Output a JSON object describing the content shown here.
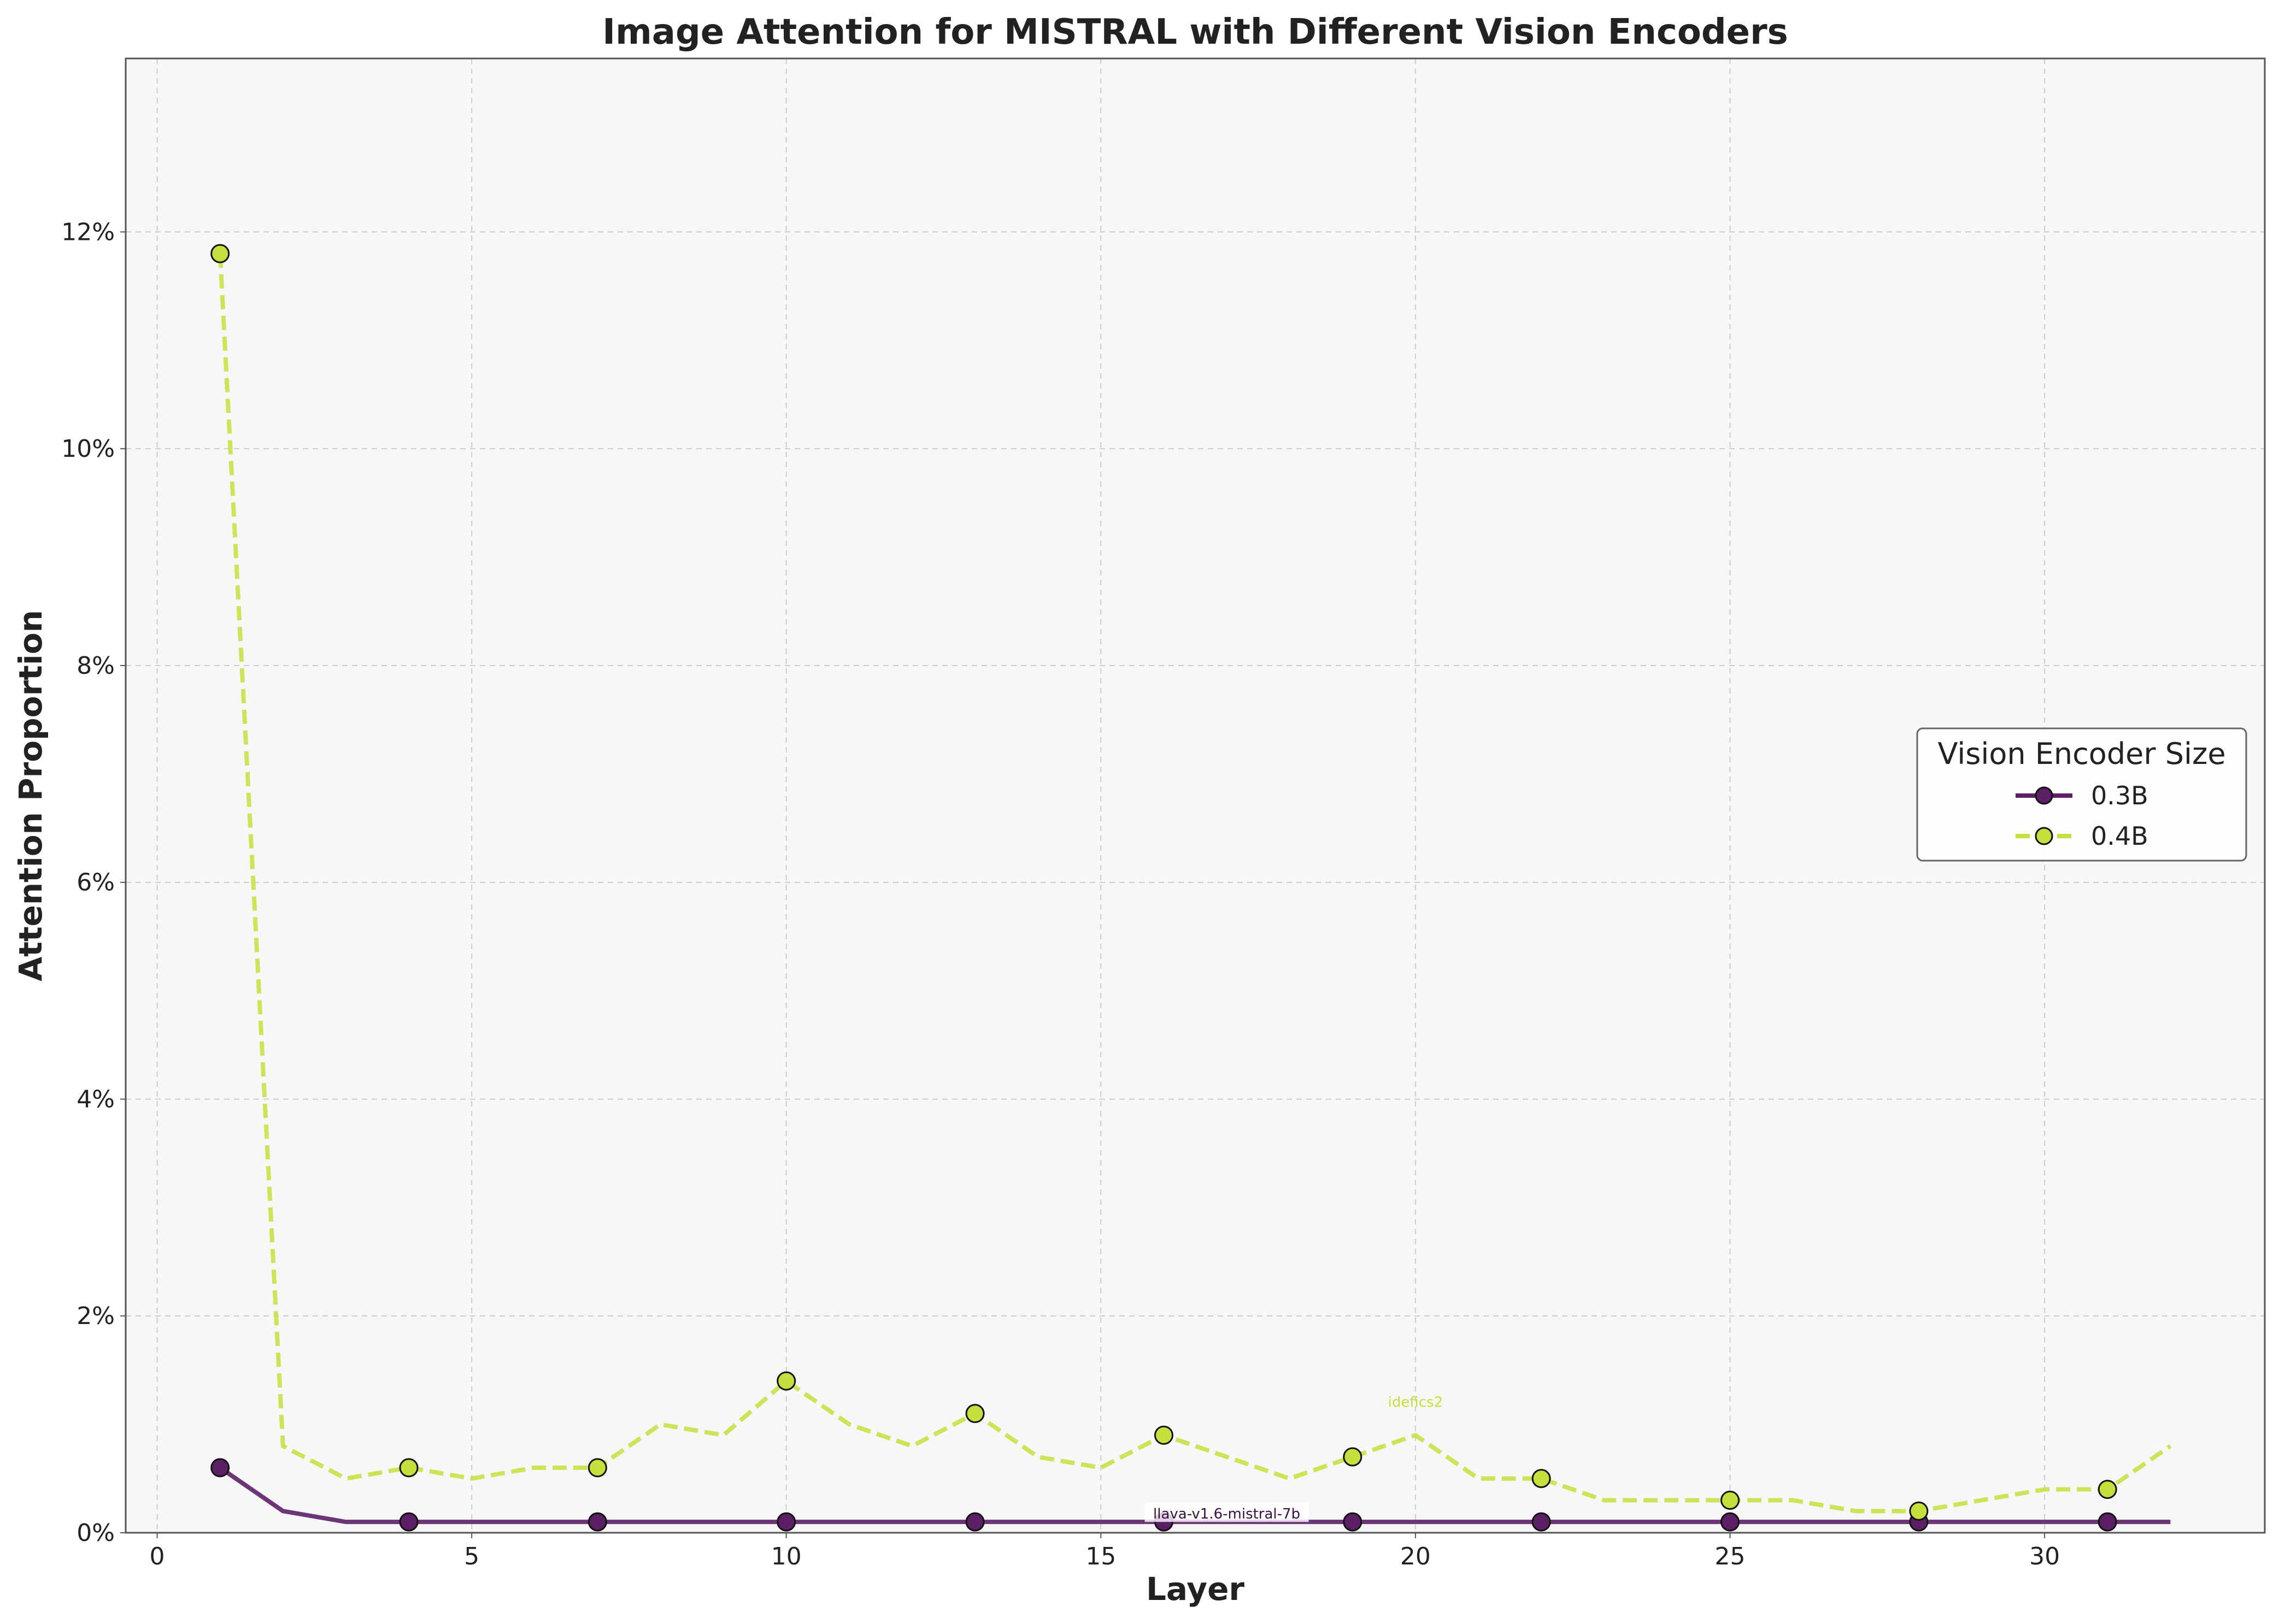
{
  "chart_data": {
    "type": "line",
    "title": "Image Attention for MISTRAL with Different Vision Encoders",
    "xlabel": "Layer",
    "ylabel": "Attention Proportion",
    "xlim": [
      -0.5,
      33.5
    ],
    "ylim": [
      0,
      13.6
    ],
    "x_ticks": [
      0,
      5,
      10,
      15,
      20,
      25,
      30
    ],
    "y_ticks": [
      0,
      2,
      4,
      6,
      8,
      10,
      12
    ],
    "y_tick_format": "percent",
    "grid": true,
    "legend": {
      "title": "Vision Encoder Size",
      "placement": "center-right"
    },
    "marker_every": 3,
    "series": [
      {
        "name": "0.3B",
        "color": "#5c1f66",
        "line_style": "solid",
        "annotation": "llava-v1.6-mistral-7b",
        "annotation_x": 17.0,
        "x": [
          1,
          2,
          3,
          4,
          5,
          6,
          7,
          8,
          9,
          10,
          11,
          12,
          13,
          14,
          15,
          16,
          17,
          18,
          19,
          20,
          21,
          22,
          23,
          24,
          25,
          26,
          27,
          28,
          29,
          30,
          31,
          32
        ],
        "values": [
          0.6,
          0.2,
          0.1,
          0.1,
          0.1,
          0.1,
          0.1,
          0.1,
          0.1,
          0.1,
          0.1,
          0.1,
          0.1,
          0.1,
          0.1,
          0.1,
          0.1,
          0.1,
          0.1,
          0.1,
          0.1,
          0.1,
          0.1,
          0.1,
          0.1,
          0.1,
          0.1,
          0.1,
          0.1,
          0.1,
          0.1,
          0.1
        ]
      },
      {
        "name": "0.4B",
        "color": "#c5e03c",
        "line_style": "dashed",
        "annotation": "idefics2",
        "annotation_x": 20.0,
        "x": [
          1,
          2,
          3,
          4,
          5,
          6,
          7,
          8,
          9,
          10,
          11,
          12,
          13,
          14,
          15,
          16,
          17,
          18,
          19,
          20,
          21,
          22,
          23,
          24,
          25,
          26,
          27,
          28,
          29,
          30,
          31,
          32
        ],
        "values": [
          11.8,
          0.8,
          0.5,
          0.6,
          0.5,
          0.6,
          0.6,
          1.0,
          0.9,
          1.4,
          1.0,
          0.8,
          1.1,
          0.7,
          0.6,
          0.9,
          0.7,
          0.5,
          0.7,
          0.9,
          0.5,
          0.5,
          0.3,
          0.3,
          0.3,
          0.3,
          0.2,
          0.2,
          0.3,
          0.4,
          0.4,
          0.8
        ]
      }
    ]
  }
}
